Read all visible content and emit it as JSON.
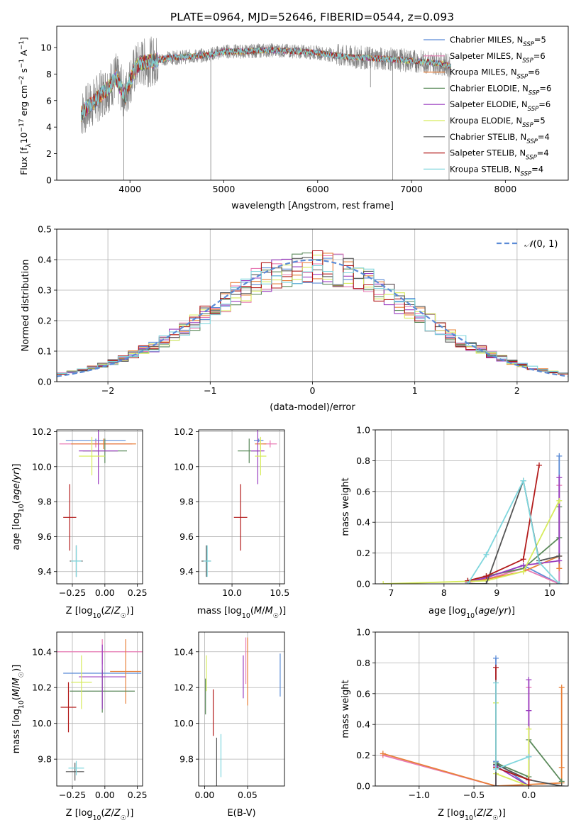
{
  "figure_title": "PLATE=0964, MJD=52646, FIBERID=0544, z=0.093",
  "colors": {
    "Chabrier MILES": "#5b8bd6",
    "Salpeter MILES": "#e87ab4",
    "Kroupa MILES": "#e8803a",
    "Chabrier ELODIE": "#5b8a5b",
    "Salpeter ELODIE": "#9a3bbf",
    "Kroupa ELODIE": "#d7ec5c",
    "Chabrier STELIB": "#555555",
    "Salpeter STELIB": "#b31b1b",
    "Kroupa STELIB": "#7fd6dd",
    "data": "#808080",
    "gauss": "#5b8bd6"
  },
  "chart_data": [
    {
      "id": "spectrum",
      "type": "line",
      "title": "PLATE=0964, MJD=52646, FIBERID=0544, z=0.093",
      "xlabel": "wavelength [Angstrom, rest frame]",
      "ylabel": "Flux [f_λ10^-17 erg cm^-2 s^-1 A^-1]",
      "xlim": [
        3220,
        8670
      ],
      "ylim": [
        0,
        11.6
      ],
      "xticks": [
        4000,
        5000,
        6000,
        7000,
        8000
      ],
      "yticks": [
        0,
        2,
        4,
        6,
        8,
        10
      ],
      "grid": false,
      "legend_position": "right",
      "legend": [
        {
          "name": "Chabrier MILES",
          "nssp": "5"
        },
        {
          "name": "Salpeter MILES",
          "nssp": "6"
        },
        {
          "name": "Kroupa MILES",
          "nssp": "6"
        },
        {
          "name": "Chabrier ELODIE",
          "nssp": "6"
        },
        {
          "name": "Salpeter ELODIE",
          "nssp": "6"
        },
        {
          "name": "Kroupa ELODIE",
          "nssp": "5"
        },
        {
          "name": "Chabrier STELIB",
          "nssp": "4"
        },
        {
          "name": "Salpeter STELIB",
          "nssp": "4"
        },
        {
          "name": "Kroupa STELIB",
          "nssp": "4"
        }
      ],
      "continuum": {
        "x": [
          3480,
          3600,
          3700,
          3800,
          3850,
          3900,
          3950,
          4000,
          4050,
          4100,
          4200,
          4400,
          4600,
          4800,
          5000,
          5200,
          5500,
          5800,
          6000,
          6300,
          6600,
          7000,
          7300,
          7420
        ],
        "y": [
          5.0,
          5.8,
          6.5,
          7.2,
          7.8,
          7.0,
          6.3,
          7.5,
          8.3,
          8.8,
          8.9,
          9.2,
          9.3,
          9.4,
          9.7,
          9.7,
          9.8,
          9.7,
          9.6,
          9.3,
          9.2,
          9.0,
          8.8,
          8.6
        ]
      },
      "absorption_lines": [
        {
          "x": 3934,
          "depth_to": 0.0
        },
        {
          "x": 4861,
          "depth_to": 0.0
        },
        {
          "x": 6563,
          "depth_to": 7.0
        },
        {
          "x": 6800,
          "depth_to": 0.0
        },
        {
          "x": 7400,
          "depth_to": 0.0
        }
      ]
    },
    {
      "id": "residuals",
      "type": "histogram",
      "xlabel": "(data-model)/error",
      "ylabel": "Normed distribution",
      "xlim": [
        -2.5,
        2.5
      ],
      "ylim": [
        0,
        0.5
      ],
      "xticks": [
        -2,
        -1,
        0,
        1,
        2
      ],
      "yticks": [
        0.0,
        0.1,
        0.2,
        0.3,
        0.4,
        0.5
      ],
      "grid": true,
      "legend_position": "upper right",
      "legend": [
        "N(0,1)"
      ],
      "bin_width": 0.1,
      "bin_start": -2.5
    },
    {
      "id": "age_vs_Z",
      "type": "errorbar",
      "xlabel": "Z [log10(Z/Z☉)]",
      "ylabel": "age [log10(age/yr)]",
      "xlim": [
        -0.37,
        0.29
      ],
      "ylim": [
        9.33,
        10.21
      ],
      "xticks": [
        -0.25,
        0.0,
        0.25
      ],
      "yticks": [
        9.4,
        9.6,
        9.8,
        10.0,
        10.2
      ],
      "grid": true,
      "points": [
        {
          "name": "Chabrier MILES",
          "x": -0.07,
          "y": 10.15,
          "xerr": 0.23,
          "yerr": 0.01
        },
        {
          "name": "Salpeter MILES",
          "x": -0.07,
          "y": 10.13,
          "xerr": 0.28,
          "yerr": 0.02
        },
        {
          "name": "Kroupa MILES",
          "x": -0.01,
          "y": 10.13,
          "xerr": 0.25,
          "yerr": 0.03
        },
        {
          "name": "Chabrier ELODIE",
          "x": 0.0,
          "y": 10.09,
          "xerr": 0.17,
          "yerr": 0.07
        },
        {
          "name": "Salpeter ELODIE",
          "x": -0.05,
          "y": 10.09,
          "xerr": 0.15,
          "yerr": 0.19
        },
        {
          "name": "Kroupa ELODIE",
          "x": -0.1,
          "y": 10.06,
          "xerr": 0.1,
          "yerr": 0.11
        },
        {
          "name": "Chabrier STELIB",
          "x": -0.22,
          "y": 9.46,
          "xerr": 0.05,
          "yerr": 0.09
        },
        {
          "name": "Salpeter STELIB",
          "x": -0.27,
          "y": 9.71,
          "xerr": 0.05,
          "yerr": 0.19
        },
        {
          "name": "Kroupa STELIB",
          "x": -0.22,
          "y": 9.46,
          "xerr": 0.04,
          "yerr": 0.09
        }
      ]
    },
    {
      "id": "age_vs_mass",
      "type": "errorbar",
      "xlabel": "mass [log10(M/M☉)]",
      "ylabel": "",
      "xlim": [
        9.65,
        10.55
      ],
      "ylim": [
        9.33,
        10.21
      ],
      "xticks": [
        10.0,
        10.5
      ],
      "yticks": [
        9.4,
        9.6,
        9.8,
        10.0,
        10.2
      ],
      "grid": true,
      "points": [
        {
          "name": "Chabrier MILES",
          "x": 10.28,
          "y": 10.15,
          "xerr": 0.05,
          "yerr": 0.01
        },
        {
          "name": "Salpeter MILES",
          "x": 10.4,
          "y": 10.13,
          "xerr": 0.07,
          "yerr": 0.02
        },
        {
          "name": "Kroupa MILES",
          "x": 10.3,
          "y": 10.13,
          "xerr": 0.06,
          "yerr": 0.03
        },
        {
          "name": "Chabrier ELODIE",
          "x": 10.18,
          "y": 10.09,
          "xerr": 0.12,
          "yerr": 0.07
        },
        {
          "name": "Salpeter ELODIE",
          "x": 10.27,
          "y": 10.09,
          "xerr": 0.07,
          "yerr": 0.19
        },
        {
          "name": "Kroupa ELODIE",
          "x": 10.3,
          "y": 10.06,
          "xerr": 0.06,
          "yerr": 0.11
        },
        {
          "name": "Chabrier STELIB",
          "x": 9.73,
          "y": 9.46,
          "xerr": 0.05,
          "yerr": 0.09
        },
        {
          "name": "Salpeter STELIB",
          "x": 10.09,
          "y": 9.71,
          "xerr": 0.07,
          "yerr": 0.19
        },
        {
          "name": "Kroupa STELIB",
          "x": 9.74,
          "y": 9.46,
          "xerr": 0.04,
          "yerr": 0.09
        }
      ]
    },
    {
      "id": "weight_vs_age",
      "type": "line",
      "xlabel": "age [log10(age/yr)]",
      "ylabel": "mass weight",
      "xlim": [
        6.7,
        10.35
      ],
      "ylim": [
        0,
        1
      ],
      "xticks": [
        7,
        8,
        9,
        10
      ],
      "yticks": [
        0.0,
        0.2,
        0.4,
        0.6,
        0.8,
        1.0
      ],
      "grid": true,
      "series": [
        {
          "name": "Chabrier MILES",
          "x": [
            8.45,
            8.8,
            9.5,
            10.18,
            10.18
          ],
          "y": [
            0.01,
            0.04,
            0.12,
            0.0,
            0.83
          ]
        },
        {
          "name": "Salpeter MILES",
          "x": [
            8.45,
            8.8,
            9.5,
            10.18,
            10.18
          ],
          "y": [
            0.01,
            0.03,
            0.1,
            0.0,
            0.64
          ]
        },
        {
          "name": "Kroupa MILES",
          "x": [
            8.45,
            8.8,
            9.5,
            10.18,
            10.18
          ],
          "y": [
            0.01,
            0.03,
            0.08,
            0.18,
            0.1
          ]
        },
        {
          "name": "Chabrier ELODIE",
          "x": [
            8.45,
            8.8,
            9.5,
            10.18,
            10.18
          ],
          "y": [
            0.02,
            0.05,
            0.1,
            0.3,
            0.5
          ]
        },
        {
          "name": "Salpeter ELODIE",
          "x": [
            8.45,
            8.8,
            9.5,
            10.18,
            10.18
          ],
          "y": [
            0.01,
            0.04,
            0.12,
            0.15,
            0.69
          ]
        },
        {
          "name": "Kroupa ELODIE",
          "x": [
            6.85,
            8.8,
            9.5,
            10.18
          ],
          "y": [
            0.0,
            0.02,
            0.08,
            0.54
          ]
        },
        {
          "name": "Chabrier STELIB",
          "x": [
            8.45,
            8.8,
            9.5,
            9.8,
            10.18
          ],
          "y": [
            0.0,
            0.0,
            0.67,
            0.15,
            0.18
          ]
        },
        {
          "name": "Salpeter STELIB",
          "x": [
            8.45,
            8.8,
            9.5,
            9.8
          ],
          "y": [
            0.02,
            0.05,
            0.16,
            0.77
          ]
        },
        {
          "name": "Kroupa STELIB",
          "x": [
            8.45,
            8.8,
            9.5,
            9.8,
            10.18
          ],
          "y": [
            0.0,
            0.19,
            0.67,
            0.14,
            0.0
          ]
        }
      ]
    },
    {
      "id": "mass_vs_Z",
      "type": "errorbar",
      "xlabel": "Z [log10(Z/Z☉)]",
      "ylabel": "mass [log10(M/M☉)]",
      "xlim": [
        -0.37,
        0.29
      ],
      "ylim": [
        9.65,
        10.51
      ],
      "xticks": [
        -0.25,
        0.0,
        0.25
      ],
      "yticks": [
        9.8,
        10.0,
        10.2,
        10.4
      ],
      "grid": true,
      "points": [
        {
          "name": "Chabrier MILES",
          "x": -0.02,
          "y": 10.28,
          "xerr": 0.3,
          "yerr": 0.01
        },
        {
          "name": "Salpeter MILES",
          "x": -0.02,
          "y": 10.4,
          "xerr": 0.4,
          "yerr": 0.07
        },
        {
          "name": "Kroupa MILES",
          "x": 0.16,
          "y": 10.29,
          "xerr": 0.12,
          "yerr": 0.18
        },
        {
          "name": "Chabrier ELODIE",
          "x": -0.02,
          "y": 10.18,
          "xerr": 0.25,
          "yerr": 0.12
        },
        {
          "name": "Salpeter ELODIE",
          "x": -0.02,
          "y": 10.26,
          "xerr": 0.18,
          "yerr": 0.18
        },
        {
          "name": "Kroupa ELODIE",
          "x": -0.18,
          "y": 10.23,
          "xerr": 0.08,
          "yerr": 0.15
        },
        {
          "name": "Chabrier STELIB",
          "x": -0.23,
          "y": 9.73,
          "xerr": 0.07,
          "yerr": 0.05
        },
        {
          "name": "Salpeter STELIB",
          "x": -0.28,
          "y": 10.09,
          "xerr": 0.06,
          "yerr": 0.14
        },
        {
          "name": "Kroupa STELIB",
          "x": -0.22,
          "y": 9.75,
          "xerr": 0.06,
          "yerr": 0.04
        }
      ]
    },
    {
      "id": "mass_vs_EBV",
      "type": "errorbar",
      "xlabel": "E(B-V)",
      "ylabel": "",
      "xlim": [
        -0.007,
        0.093
      ],
      "ylim": [
        9.65,
        10.51
      ],
      "xticks": [
        0.0,
        0.05
      ],
      "yticks": [
        9.8,
        10.0,
        10.2,
        10.4
      ],
      "grid": true,
      "points": [
        {
          "name": "Chabrier MILES",
          "x": 0.088,
          "y": 10.27,
          "xerr": 0.0,
          "yerr": 0.12
        },
        {
          "name": "Salpeter MILES",
          "x": 0.048,
          "y": 10.35,
          "xerr": 0.0,
          "yerr": 0.13
        },
        {
          "name": "Kroupa MILES",
          "x": 0.05,
          "y": 10.29,
          "xerr": 0.0,
          "yerr": 0.19
        },
        {
          "name": "Chabrier ELODIE",
          "x": 0.001,
          "y": 10.15,
          "xerr": 0.0,
          "yerr": 0.1
        },
        {
          "name": "Salpeter ELODIE",
          "x": 0.045,
          "y": 10.26,
          "xerr": 0.0,
          "yerr": 0.12
        },
        {
          "name": "Kroupa ELODIE",
          "x": 0.002,
          "y": 10.28,
          "xerr": 0.0,
          "yerr": 0.1
        },
        {
          "name": "Chabrier STELIB",
          "x": 0.014,
          "y": 9.74,
          "xerr": 0.0,
          "yerr": 0.18
        },
        {
          "name": "Salpeter STELIB",
          "x": 0.01,
          "y": 10.06,
          "xerr": 0.0,
          "yerr": 0.13
        },
        {
          "name": "Kroupa STELIB",
          "x": 0.019,
          "y": 9.82,
          "xerr": 0.0,
          "yerr": 0.12
        }
      ]
    },
    {
      "id": "weight_vs_Z",
      "type": "line",
      "xlabel": "Z [log10(Z/Z☉)]",
      "ylabel": "mass weight",
      "xlim": [
        -1.4,
        0.36
      ],
      "ylim": [
        0,
        1
      ],
      "xticks": [
        -1.0,
        -0.5,
        0.0
      ],
      "yticks": [
        0.0,
        0.2,
        0.4,
        0.6,
        0.8,
        1.0
      ],
      "grid": true,
      "series": [
        {
          "name": "Chabrier MILES",
          "x": [
            -0.3,
            -0.3,
            0.0,
            0.0,
            0.0
          ],
          "y": [
            0.83,
            0.16,
            0.0,
            0.19,
            0.0
          ]
        },
        {
          "name": "Salpeter MILES",
          "x": [
            -1.33,
            -0.3,
            0.0,
            0.0
          ],
          "y": [
            0.2,
            0.0,
            0.0,
            0.64
          ]
        },
        {
          "name": "Kroupa MILES",
          "x": [
            -1.33,
            -0.3,
            0.3,
            0.3,
            0.3
          ],
          "y": [
            0.21,
            0.0,
            0.02,
            0.64,
            0.12
          ]
        },
        {
          "name": "Chabrier ELODIE",
          "x": [
            -0.3,
            -0.3,
            0.0,
            0.0,
            0.3
          ],
          "y": [
            0.0,
            0.15,
            0.06,
            0.3,
            0.03
          ]
        },
        {
          "name": "Salpeter ELODIE",
          "x": [
            -0.3,
            -0.3,
            0.0,
            0.0,
            0.0
          ],
          "y": [
            0.0,
            0.13,
            0.0,
            0.69,
            0.49
          ]
        },
        {
          "name": "Kroupa ELODIE",
          "x": [
            -0.3,
            -0.3,
            0.0,
            0.0
          ],
          "y": [
            0.54,
            0.08,
            0.0,
            0.37
          ]
        },
        {
          "name": "Chabrier STELIB",
          "x": [
            -0.3,
            -0.3,
            0.0,
            0.3
          ],
          "y": [
            0.0,
            0.14,
            0.04,
            0.0
          ]
        },
        {
          "name": "Salpeter STELIB",
          "x": [
            -0.3,
            -0.3,
            0.0,
            0.0
          ],
          "y": [
            0.77,
            0.12,
            0.04,
            0.0
          ]
        },
        {
          "name": "Kroupa STELIB",
          "x": [
            -0.3,
            -0.3,
            0.0
          ],
          "y": [
            0.67,
            0.11,
            0.19
          ]
        }
      ]
    }
  ]
}
